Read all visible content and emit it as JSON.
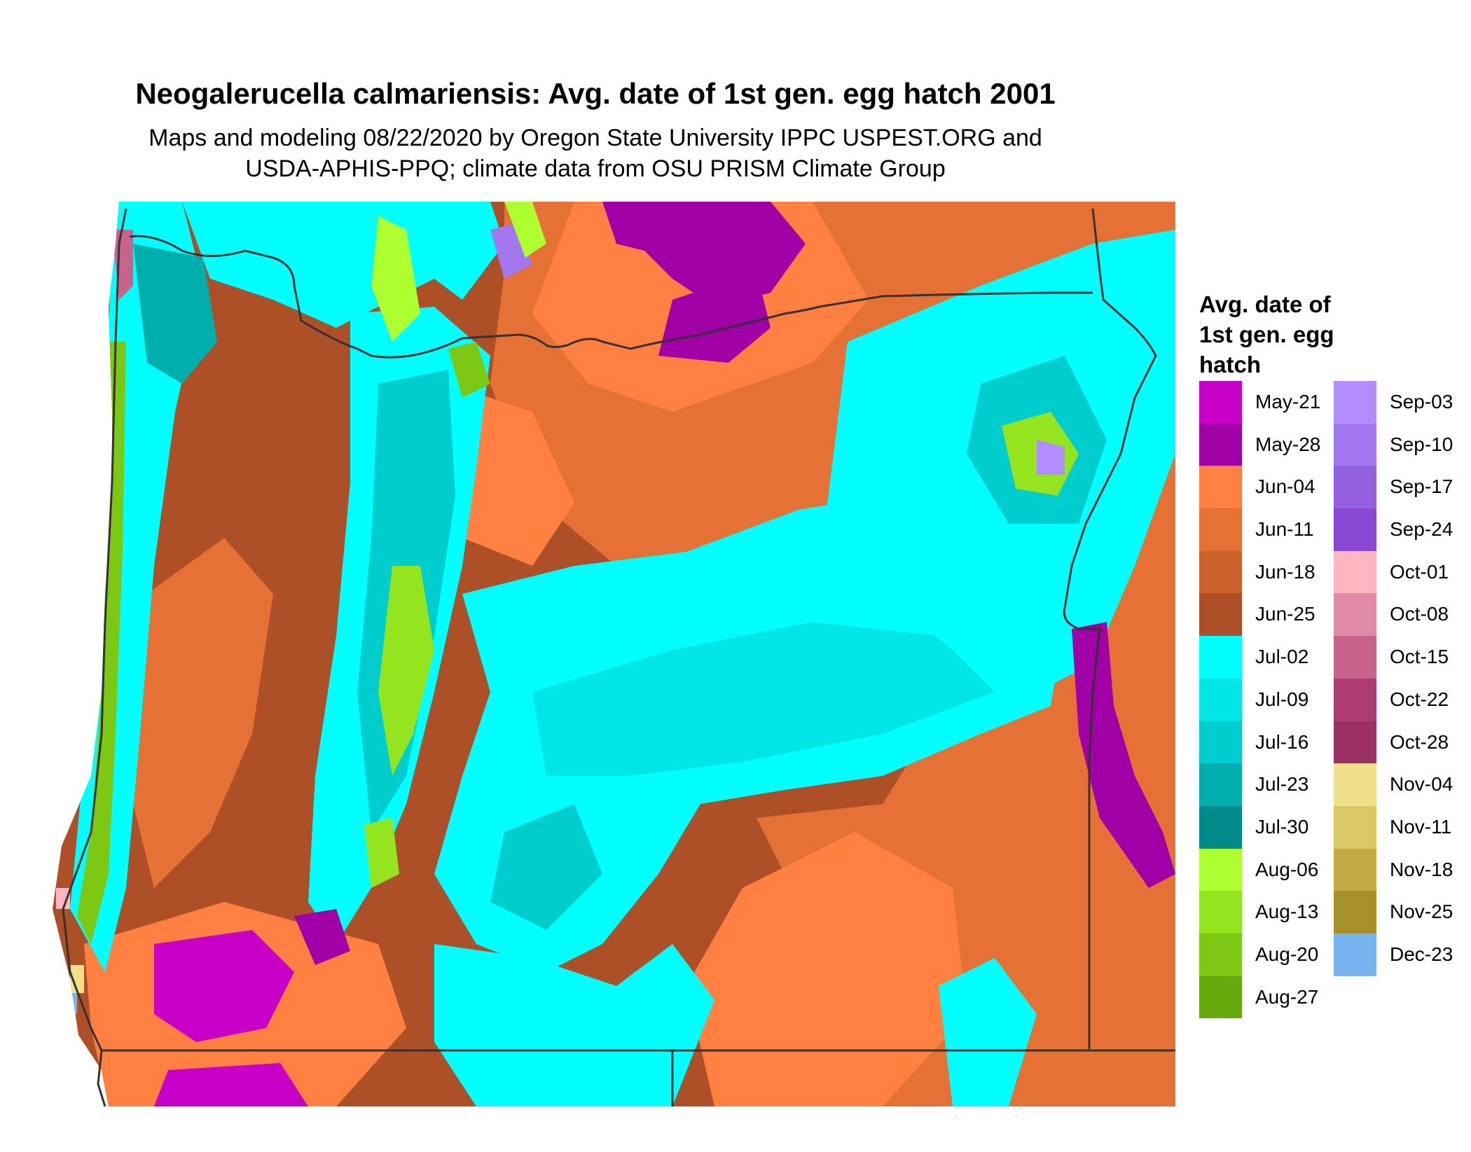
{
  "title": "Neogalerucella calmariensis: Avg. date of 1st gen. egg hatch 2001",
  "subtitle_line1": "Maps and modeling 08/22/2020 by Oregon State University IPPC USPEST.ORG and",
  "subtitle_line2": "USDA-APHIS-PPQ; climate data from OSU PRISM Climate Group",
  "legend": {
    "title_lines": [
      "Avg. date of",
      "1st gen. egg",
      "hatch"
    ],
    "column1": [
      {
        "label": "May-21",
        "color": "#c800c8"
      },
      {
        "label": "May-28",
        "color": "#a000a5"
      },
      {
        "label": "Jun-04",
        "color": "#ff8040"
      },
      {
        "label": "Jun-11",
        "color": "#e57135"
      },
      {
        "label": "Jun-18",
        "color": "#cc622c"
      },
      {
        "label": "Jun-25",
        "color": "#ad5028"
      },
      {
        "label": "Jul-02",
        "color": "#00ffff"
      },
      {
        "label": "Jul-09",
        "color": "#00e6e6"
      },
      {
        "label": "Jul-16",
        "color": "#00cdcd"
      },
      {
        "label": "Jul-23",
        "color": "#00aeae"
      },
      {
        "label": "Jul-30",
        "color": "#008b8b"
      },
      {
        "label": "Aug-06",
        "color": "#adff2f"
      },
      {
        "label": "Aug-13",
        "color": "#94e51e"
      },
      {
        "label": "Aug-20",
        "color": "#7cc813"
      },
      {
        "label": "Aug-27",
        "color": "#64aa0a"
      }
    ],
    "column2": [
      {
        "label": "Sep-03",
        "color": "#b38cff"
      },
      {
        "label": "Sep-10",
        "color": "#a378ef"
      },
      {
        "label": "Sep-17",
        "color": "#9560e0"
      },
      {
        "label": "Sep-24",
        "color": "#8848d2"
      },
      {
        "label": "Oct-01",
        "color": "#ffb6c1"
      },
      {
        "label": "Oct-08",
        "color": "#e08ca8"
      },
      {
        "label": "Oct-15",
        "color": "#c8648c"
      },
      {
        "label": "Oct-22",
        "color": "#ad3c74"
      },
      {
        "label": "Oct-28",
        "color": "#9b3066"
      },
      {
        "label": "Nov-04",
        "color": "#f0e08c"
      },
      {
        "label": "Nov-11",
        "color": "#dcc864"
      },
      {
        "label": "Nov-18",
        "color": "#c4aa44"
      },
      {
        "label": "Nov-25",
        "color": "#a8902a"
      },
      {
        "label": "Dec-23",
        "color": "#78b4f0"
      }
    ]
  },
  "map": {
    "border_color": "#333333",
    "background_color": "#ad5028"
  }
}
